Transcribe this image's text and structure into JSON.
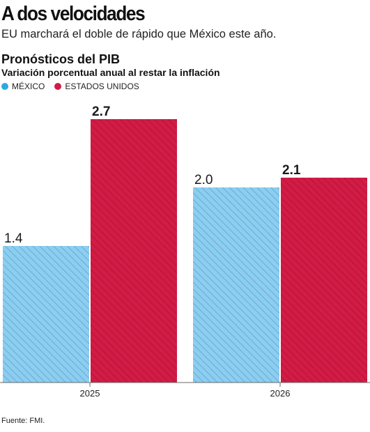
{
  "headline": "A dos velocidades",
  "subheadline": "EU marchará el doble de rápido que México este año.",
  "source": "Fuente: FMI.",
  "colors": {
    "mexico": "#8fcdee",
    "usa": "#d21b45"
  },
  "chart_data": {
    "type": "bar",
    "title": "Pronósticos del PIB",
    "subtitle": "Variación porcentual anual al restar la inflación",
    "categories": [
      "2025",
      "2026"
    ],
    "series": [
      {
        "name": "MÉXICO",
        "values": [
          1.4,
          2.0
        ],
        "labels": [
          "1.4",
          "2.0"
        ],
        "color": "#8fcdee"
      },
      {
        "name": "ESTADOS UNIDOS",
        "values": [
          2.7,
          2.1
        ],
        "labels": [
          "2.7",
          "2.1"
        ],
        "color": "#d21b45"
      }
    ],
    "ylim": [
      0,
      3.4
    ],
    "legend_position": "top-left",
    "grid": false
  }
}
